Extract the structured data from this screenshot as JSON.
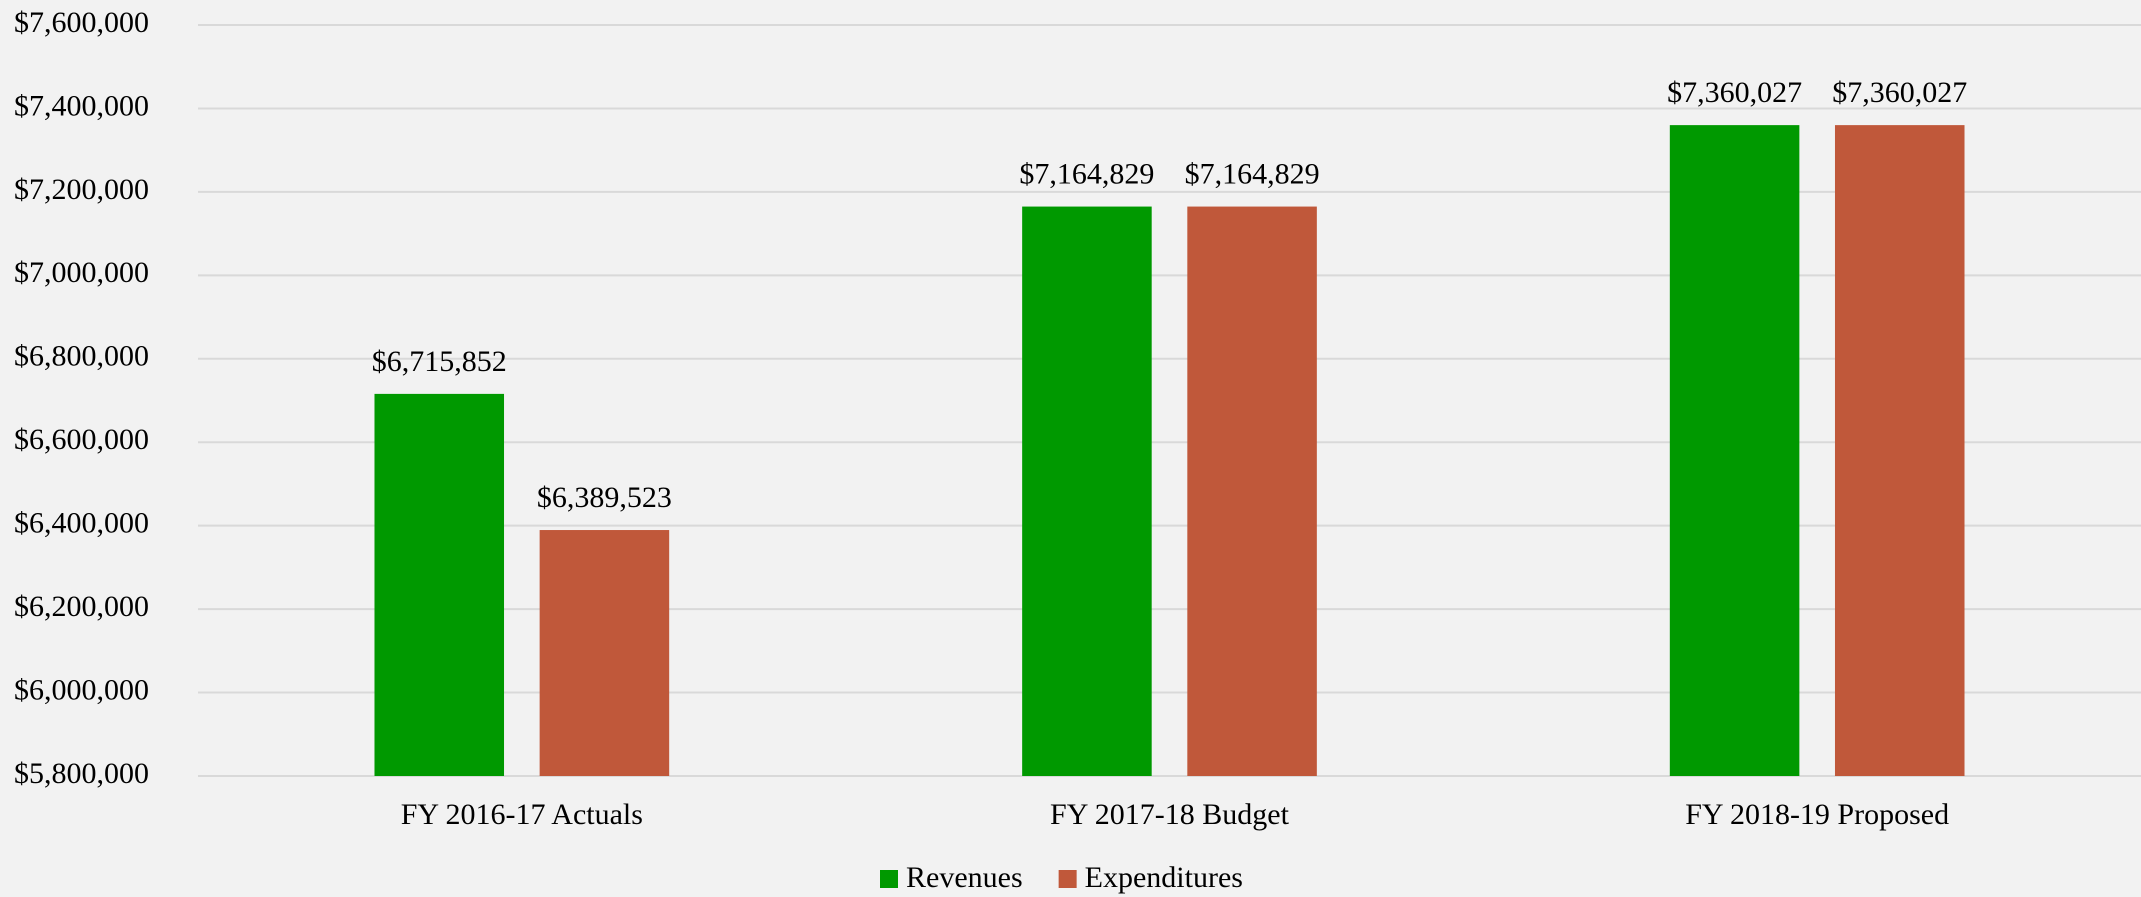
{
  "chart_data": {
    "type": "bar",
    "categories": [
      "FY 2016-17 Actuals",
      "FY 2017-18 Budget",
      "FY 2018-19 Proposed"
    ],
    "series": [
      {
        "name": "Revenues",
        "color": "#009900",
        "values": [
          6715852,
          7164829,
          7360027
        ],
        "value_labels": [
          "$6,715,852",
          "$7,164,829",
          "$7,360,027"
        ]
      },
      {
        "name": "Expenditures",
        "color": "#c0583a",
        "values": [
          6389523,
          7164829,
          7360027
        ],
        "value_labels": [
          "$6,389,523",
          "$7,164,829",
          "$7,360,027"
        ]
      }
    ],
    "ylim": [
      5800000,
      7600000
    ],
    "yticks": [
      {
        "value": 5800000,
        "label": "$5,800,000"
      },
      {
        "value": 6000000,
        "label": "$6,000,000"
      },
      {
        "value": 6200000,
        "label": "$6,200,000"
      },
      {
        "value": 6400000,
        "label": "$6,400,000"
      },
      {
        "value": 6600000,
        "label": "$6,600,000"
      },
      {
        "value": 6800000,
        "label": "$6,800,000"
      },
      {
        "value": 7000000,
        "label": "$7,000,000"
      },
      {
        "value": 7200000,
        "label": "$7,200,000"
      },
      {
        "value": 7400000,
        "label": "$7,400,000"
      },
      {
        "value": 7600000,
        "label": "$7,600,000"
      }
    ],
    "grid": true,
    "legend": "bottom"
  }
}
